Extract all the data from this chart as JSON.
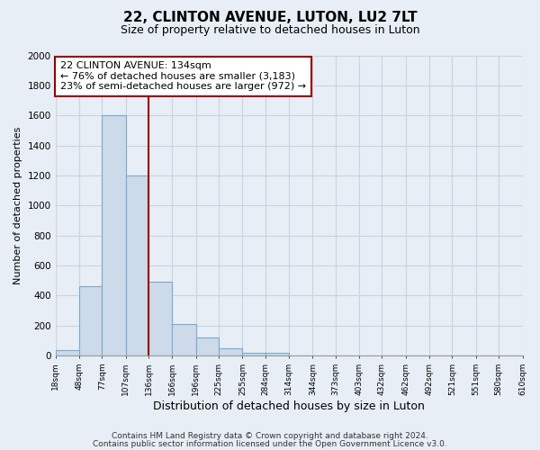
{
  "title": "22, CLINTON AVENUE, LUTON, LU2 7LT",
  "subtitle": "Size of property relative to detached houses in Luton",
  "xlabel": "Distribution of detached houses by size in Luton",
  "ylabel": "Number of detached properties",
  "bin_edges": [
    18,
    48,
    77,
    107,
    136,
    166,
    196,
    225,
    255,
    284,
    314,
    344,
    373,
    403,
    432,
    462,
    492,
    521,
    551,
    580,
    610
  ],
  "bar_heights": [
    35,
    460,
    1600,
    1200,
    490,
    210,
    120,
    45,
    20,
    15,
    0,
    0,
    0,
    0,
    0,
    0,
    0,
    0,
    0,
    0
  ],
  "bar_color": "#ccdaea",
  "bar_edge_color": "#7aaacf",
  "vline_x": 136,
  "vline_color": "#990000",
  "annotation_line1": "22 CLINTON AVENUE: 134sqm",
  "annotation_line2": "← 76% of detached houses are smaller (3,183)",
  "annotation_line3": "23% of semi-detached houses are larger (972) →",
  "annotation_box_facecolor": "white",
  "annotation_box_edgecolor": "#990000",
  "ylim": [
    0,
    2000
  ],
  "yticks": [
    0,
    200,
    400,
    600,
    800,
    1000,
    1200,
    1400,
    1600,
    1800,
    2000
  ],
  "tick_labels": [
    "18sqm",
    "48sqm",
    "77sqm",
    "107sqm",
    "136sqm",
    "166sqm",
    "196sqm",
    "225sqm",
    "255sqm",
    "284sqm",
    "314sqm",
    "344sqm",
    "373sqm",
    "403sqm",
    "432sqm",
    "462sqm",
    "492sqm",
    "521sqm",
    "551sqm",
    "580sqm",
    "610sqm"
  ],
  "footer1": "Contains HM Land Registry data © Crown copyright and database right 2024.",
  "footer2": "Contains public sector information licensed under the Open Government Licence v3.0.",
  "bg_color": "#e8eef5",
  "plot_bg_color": "#e8eef5",
  "grid_color": "#c8d4e0",
  "title_fontsize": 11,
  "subtitle_fontsize": 9,
  "annotation_fontsize": 8,
  "footer_fontsize": 6.5,
  "ylabel_fontsize": 8,
  "xlabel_fontsize": 9
}
